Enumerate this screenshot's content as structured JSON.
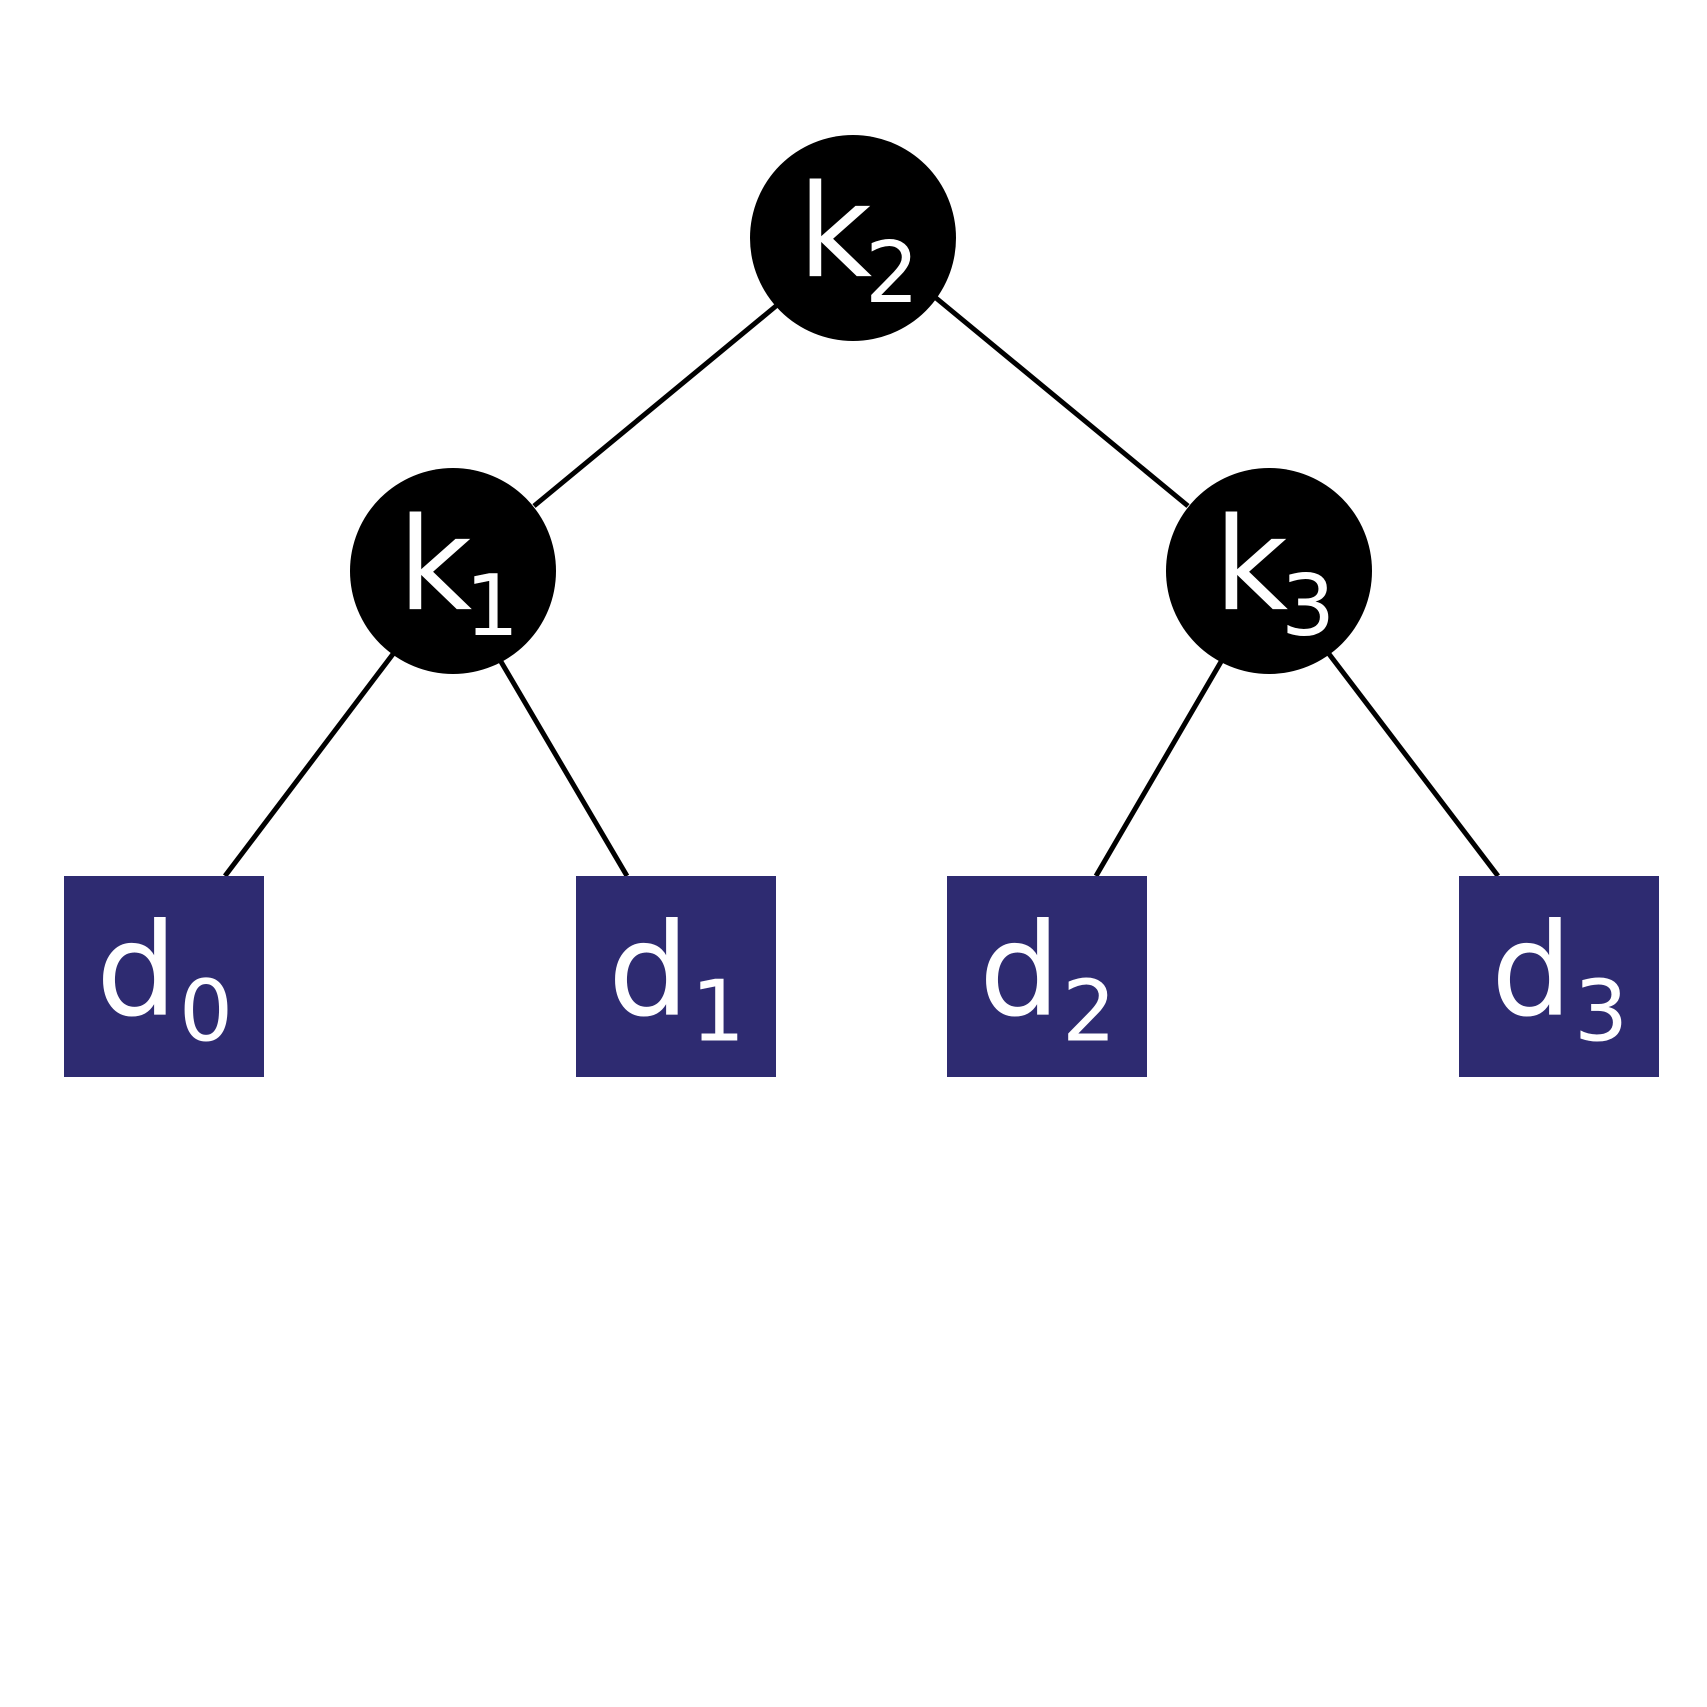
{
  "diagram": {
    "type": "binary-search-tree",
    "colors": {
      "key_node_fill": "#000000",
      "dummy_node_fill": "#2e2b71",
      "label_color": "#ffffff",
      "edge_color": "#000000",
      "background": "#ffffff"
    },
    "key_nodes": [
      {
        "id": "k2",
        "base": "k",
        "sub": "2"
      },
      {
        "id": "k1",
        "base": "k",
        "sub": "1"
      },
      {
        "id": "k3",
        "base": "k",
        "sub": "3"
      }
    ],
    "dummy_nodes": [
      {
        "id": "d0",
        "base": "d",
        "sub": "0"
      },
      {
        "id": "d1",
        "base": "d",
        "sub": "1"
      },
      {
        "id": "d2",
        "base": "d",
        "sub": "2"
      },
      {
        "id": "d3",
        "base": "d",
        "sub": "3"
      }
    ],
    "edges": [
      {
        "from": "k2",
        "to": "k1"
      },
      {
        "from": "k2",
        "to": "k3"
      },
      {
        "from": "k1",
        "to": "d0"
      },
      {
        "from": "k1",
        "to": "d1"
      },
      {
        "from": "k3",
        "to": "d2"
      },
      {
        "from": "k3",
        "to": "d3"
      }
    ]
  }
}
